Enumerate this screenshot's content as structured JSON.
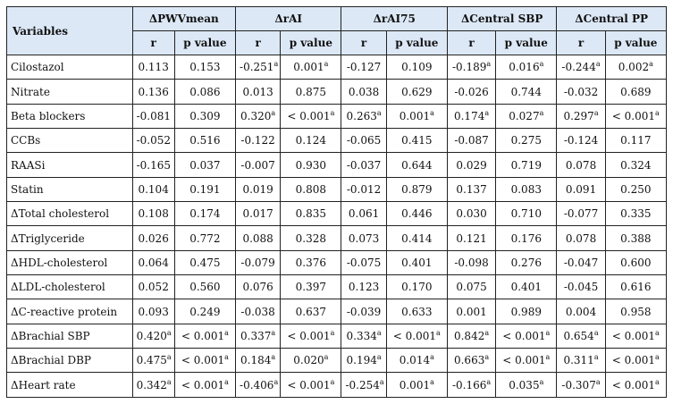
{
  "table": {
    "variables_label": "Variables",
    "groups": [
      "ΔPWVmean",
      "ΔrAI",
      "ΔrAI75",
      "ΔCentral SBP",
      "ΔCentral PP"
    ],
    "sub_r": "r",
    "sub_p": "p value",
    "rows": [
      {
        "name": "Cilostazol",
        "cells": [
          [
            "0.113",
            ""
          ],
          [
            "0.153",
            ""
          ],
          [
            "-0.251",
            "a"
          ],
          [
            "0.001",
            "a"
          ],
          [
            "-0.127",
            ""
          ],
          [
            "0.109",
            ""
          ],
          [
            "-0.189",
            "a"
          ],
          [
            "0.016",
            "a"
          ],
          [
            "-0.244",
            "a"
          ],
          [
            "0.002",
            "a"
          ]
        ]
      },
      {
        "name": "Nitrate",
        "cells": [
          [
            "0.136",
            ""
          ],
          [
            "0.086",
            ""
          ],
          [
            "0.013",
            ""
          ],
          [
            "0.875",
            ""
          ],
          [
            "0.038",
            ""
          ],
          [
            "0.629",
            ""
          ],
          [
            "-0.026",
            ""
          ],
          [
            "0.744",
            ""
          ],
          [
            "-0.032",
            ""
          ],
          [
            "0.689",
            ""
          ]
        ]
      },
      {
        "name": "Beta blockers",
        "cells": [
          [
            "-0.081",
            ""
          ],
          [
            "0.309",
            ""
          ],
          [
            "0.320",
            "a"
          ],
          [
            "< 0.001",
            "a"
          ],
          [
            "0.263",
            "a"
          ],
          [
            "0.001",
            "a"
          ],
          [
            "0.174",
            "a"
          ],
          [
            "0.027",
            "a"
          ],
          [
            "0.297",
            "a"
          ],
          [
            "< 0.001",
            "a"
          ]
        ]
      },
      {
        "name": "CCBs",
        "cells": [
          [
            "-0.052",
            ""
          ],
          [
            "0.516",
            ""
          ],
          [
            "-0.122",
            ""
          ],
          [
            "0.124",
            ""
          ],
          [
            "-0.065",
            ""
          ],
          [
            "0.415",
            ""
          ],
          [
            "-0.087",
            ""
          ],
          [
            "0.275",
            ""
          ],
          [
            "-0.124",
            ""
          ],
          [
            "0.117",
            ""
          ]
        ]
      },
      {
        "name": "RAASi",
        "cells": [
          [
            "-0.165",
            ""
          ],
          [
            "0.037",
            ""
          ],
          [
            "-0.007",
            ""
          ],
          [
            "0.930",
            ""
          ],
          [
            "-0.037",
            ""
          ],
          [
            "0.644",
            ""
          ],
          [
            "0.029",
            ""
          ],
          [
            "0.719",
            ""
          ],
          [
            "0.078",
            ""
          ],
          [
            "0.324",
            ""
          ]
        ]
      },
      {
        "name": "Statin",
        "cells": [
          [
            "0.104",
            ""
          ],
          [
            "0.191",
            ""
          ],
          [
            "0.019",
            ""
          ],
          [
            "0.808",
            ""
          ],
          [
            "-0.012",
            ""
          ],
          [
            "0.879",
            ""
          ],
          [
            "0.137",
            ""
          ],
          [
            "0.083",
            ""
          ],
          [
            "0.091",
            ""
          ],
          [
            "0.250",
            ""
          ]
        ]
      },
      {
        "name": "ΔTotal cholesterol",
        "cells": [
          [
            "0.108",
            ""
          ],
          [
            "0.174",
            ""
          ],
          [
            "0.017",
            ""
          ],
          [
            "0.835",
            ""
          ],
          [
            "0.061",
            ""
          ],
          [
            "0.446",
            ""
          ],
          [
            "0.030",
            ""
          ],
          [
            "0.710",
            ""
          ],
          [
            "-0.077",
            ""
          ],
          [
            "0.335",
            ""
          ]
        ]
      },
      {
        "name": "ΔTriglyceride",
        "cells": [
          [
            "0.026",
            ""
          ],
          [
            "0.772",
            ""
          ],
          [
            "0.088",
            ""
          ],
          [
            "0.328",
            ""
          ],
          [
            "0.073",
            ""
          ],
          [
            "0.414",
            ""
          ],
          [
            "0.121",
            ""
          ],
          [
            "0.176",
            ""
          ],
          [
            "0.078",
            ""
          ],
          [
            "0.388",
            ""
          ]
        ]
      },
      {
        "name": "ΔHDL-cholesterol",
        "cells": [
          [
            "0.064",
            ""
          ],
          [
            "0.475",
            ""
          ],
          [
            "-0.079",
            ""
          ],
          [
            "0.376",
            ""
          ],
          [
            "-0.075",
            ""
          ],
          [
            "0.401",
            ""
          ],
          [
            "-0.098",
            ""
          ],
          [
            "0.276",
            ""
          ],
          [
            "-0.047",
            ""
          ],
          [
            "0.600",
            ""
          ]
        ]
      },
      {
        "name": "ΔLDL-cholesterol",
        "cells": [
          [
            "0.052",
            ""
          ],
          [
            "0.560",
            ""
          ],
          [
            "0.076",
            ""
          ],
          [
            "0.397",
            ""
          ],
          [
            "0.123",
            ""
          ],
          [
            "0.170",
            ""
          ],
          [
            "0.075",
            ""
          ],
          [
            "0.401",
            ""
          ],
          [
            "-0.045",
            ""
          ],
          [
            "0.616",
            ""
          ]
        ]
      },
      {
        "name": "ΔC-reactive protein",
        "cells": [
          [
            "0.093",
            ""
          ],
          [
            "0.249",
            ""
          ],
          [
            "-0.038",
            ""
          ],
          [
            "0.637",
            ""
          ],
          [
            "-0.039",
            ""
          ],
          [
            "0.633",
            ""
          ],
          [
            "0.001",
            ""
          ],
          [
            "0.989",
            ""
          ],
          [
            "0.004",
            ""
          ],
          [
            "0.958",
            ""
          ]
        ]
      },
      {
        "name": "ΔBrachial SBP",
        "cells": [
          [
            "0.420",
            "a"
          ],
          [
            "< 0.001",
            "a"
          ],
          [
            "0.337",
            "a"
          ],
          [
            "< 0.001",
            "a"
          ],
          [
            "0.334",
            "a"
          ],
          [
            "< 0.001",
            "a"
          ],
          [
            "0.842",
            "a"
          ],
          [
            "< 0.001",
            "a"
          ],
          [
            "0.654",
            "a"
          ],
          [
            "< 0.001",
            "a"
          ]
        ]
      },
      {
        "name": "ΔBrachial DBP",
        "cells": [
          [
            "0.475",
            "a"
          ],
          [
            "< 0.001",
            "a"
          ],
          [
            "0.184",
            "a"
          ],
          [
            "0.020",
            "a"
          ],
          [
            "0.194",
            "a"
          ],
          [
            "0.014",
            "a"
          ],
          [
            "0.663",
            "a"
          ],
          [
            "< 0.001",
            "a"
          ],
          [
            "0.311",
            "a"
          ],
          [
            "< 0.001",
            "a"
          ]
        ]
      },
      {
        "name": "ΔHeart rate",
        "cells": [
          [
            "0.342",
            "a"
          ],
          [
            "< 0.001",
            "a"
          ],
          [
            "-0.406",
            "a"
          ],
          [
            "< 0.001",
            "a"
          ],
          [
            "-0.254",
            "a"
          ],
          [
            "0.001",
            "a"
          ],
          [
            "-0.166",
            "a"
          ],
          [
            "0.035",
            "a"
          ],
          [
            "-0.307",
            "a"
          ],
          [
            "< 0.001",
            "a"
          ]
        ]
      }
    ]
  }
}
